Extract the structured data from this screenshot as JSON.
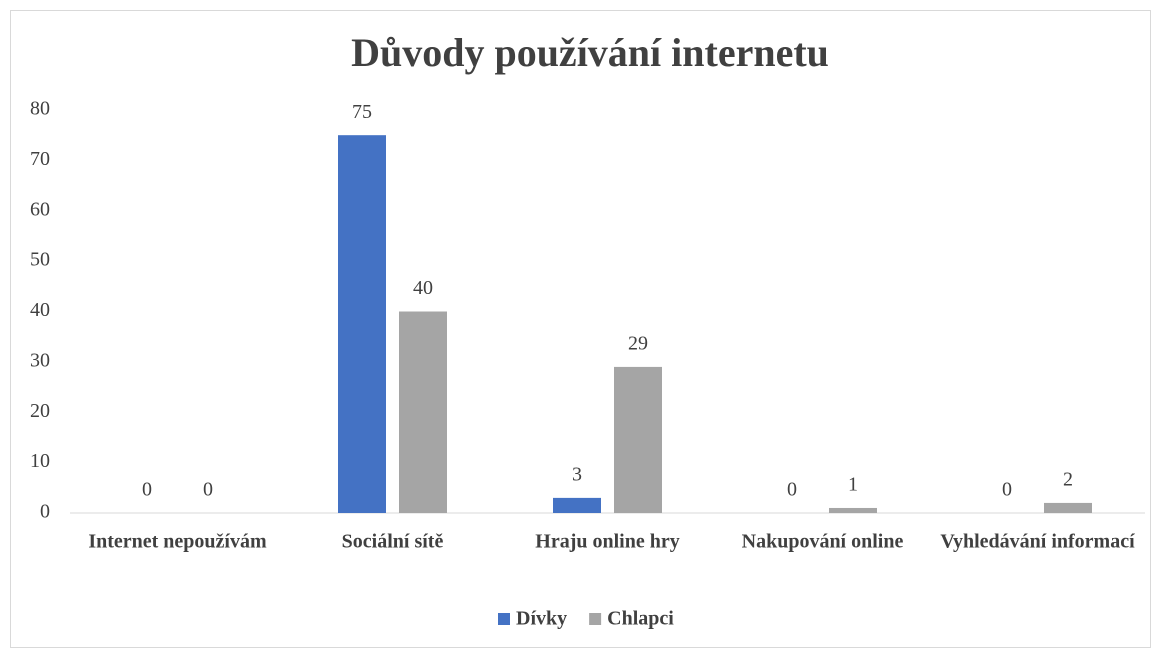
{
  "chart_data": {
    "type": "bar",
    "title": "Důvody používání internetu",
    "categories": [
      "Internet nepoužívám",
      "Sociální sítě",
      "Hraju online hry",
      "Nakupování online",
      "Vyhledávání informací"
    ],
    "series": [
      {
        "name": "Dívky",
        "color": "#4472c4",
        "values": [
          0,
          75,
          3,
          0,
          0
        ]
      },
      {
        "name": "Chlapci",
        "color": "#a5a5a5",
        "values": [
          0,
          40,
          29,
          1,
          2
        ]
      }
    ],
    "ylim": [
      0,
      80
    ],
    "yticks": [
      0,
      10,
      20,
      30,
      40,
      50,
      60,
      70,
      80
    ],
    "grid": false,
    "legend": "bottom"
  }
}
